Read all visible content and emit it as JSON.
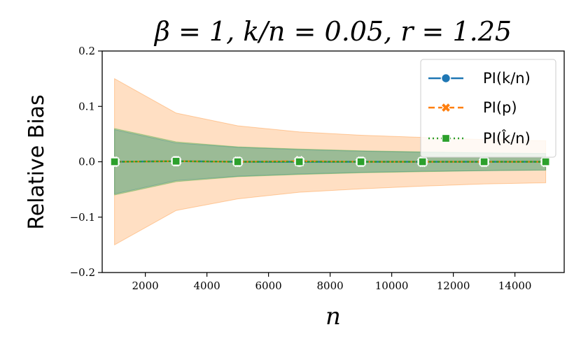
{
  "chart_data": {
    "type": "line",
    "title": "β = 1, k/n = 0.05, r = 1.25",
    "xlabel": "n",
    "ylabel": "Relative Bias",
    "xlim": [
      600,
      15600
    ],
    "ylim": [
      -0.2,
      0.2
    ],
    "x_ticks": [
      2000,
      4000,
      6000,
      8000,
      10000,
      12000,
      14000
    ],
    "y_ticks": [
      -0.2,
      -0.1,
      0.0,
      0.1,
      0.2
    ],
    "y_tick_labels": [
      "−0.2",
      "−0.1",
      "0.0",
      "0.1",
      "0.2"
    ],
    "x": [
      1000,
      3000,
      5000,
      7000,
      9000,
      11000,
      13000,
      15000
    ],
    "series": [
      {
        "name": "PI(k/n)",
        "color": "#1f77b4",
        "line_style": "solid",
        "marker": "circle",
        "values": [
          0.0,
          0.001,
          0.0,
          0.0,
          0.0,
          0.0,
          0.0,
          0.0
        ],
        "band_upper": [
          0.058,
          0.034,
          0.026,
          0.022,
          0.019,
          0.017,
          0.016,
          0.015
        ],
        "band_lower": [
          -0.058,
          -0.034,
          -0.026,
          -0.022,
          -0.019,
          -0.017,
          -0.016,
          -0.015
        ]
      },
      {
        "name": "PI(p)",
        "color": "#ff7f0e",
        "line_style": "dashed",
        "marker": "x",
        "values": [
          0.0,
          0.001,
          0.0,
          0.001,
          0.0,
          0.0,
          0.0,
          0.0
        ],
        "band_upper": [
          0.15,
          0.088,
          0.065,
          0.054,
          0.048,
          0.044,
          0.04,
          0.038
        ],
        "band_lower": [
          -0.15,
          -0.088,
          -0.067,
          -0.055,
          -0.049,
          -0.044,
          -0.04,
          -0.038
        ]
      },
      {
        "name": "PI(k̂/n)",
        "color": "#2ca02c",
        "line_style": "dotted",
        "marker": "square",
        "values": [
          0.0,
          0.001,
          0.0,
          0.0,
          0.0,
          0.0,
          0.0,
          0.0
        ],
        "band_upper": [
          0.06,
          0.036,
          0.027,
          0.023,
          0.02,
          0.018,
          0.016,
          0.015
        ],
        "band_lower": [
          -0.06,
          -0.036,
          -0.027,
          -0.023,
          -0.02,
          -0.018,
          -0.016,
          -0.015
        ]
      }
    ],
    "legend_position": "top-right"
  }
}
